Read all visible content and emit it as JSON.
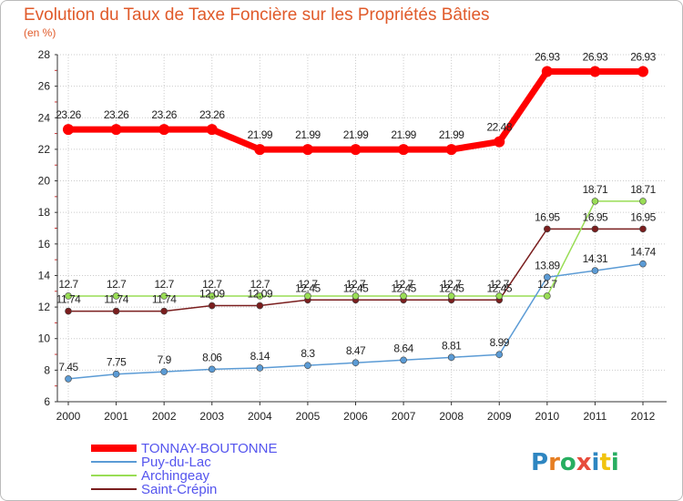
{
  "chart_data": {
    "type": "line",
    "title": "Evolution du Taux de Taxe Foncière sur les Propriétés Bâties",
    "ylabel": "(en %)",
    "xlabel": "",
    "ylim": [
      6,
      28
    ],
    "yticks": [
      "6",
      "8",
      "10",
      "12",
      "14",
      "16",
      "18",
      "20",
      "22",
      "24",
      "26",
      "28"
    ],
    "categories": [
      "2000",
      "2001",
      "2002",
      "2003",
      "2004",
      "2005",
      "2006",
      "2007",
      "2008",
      "2009",
      "2010",
      "2011",
      "2012"
    ],
    "series": [
      {
        "name": "TONNAY-BOUTONNE",
        "color": "#ff0000",
        "values": [
          23.26,
          23.26,
          23.26,
          23.26,
          21.99,
          21.99,
          21.99,
          21.99,
          21.99,
          22.48,
          26.93,
          26.93,
          26.93
        ],
        "labels": [
          "23.26",
          "23.26",
          "23.26",
          "23.26",
          "21.99",
          "21.99",
          "21.99",
          "21.99",
          "21.99",
          "22.48",
          "26.93",
          "26.93",
          "26.93"
        ]
      },
      {
        "name": "Puy-du-Lac",
        "color": "#5b9bd5",
        "values": [
          7.45,
          7.75,
          7.9,
          8.06,
          8.14,
          8.3,
          8.47,
          8.64,
          8.81,
          8.99,
          13.89,
          14.31,
          14.74
        ],
        "labels": [
          "7.45",
          "7.75",
          "7.9",
          "8.06",
          "8.14",
          "8.3",
          "8.47",
          "8.64",
          "8.81",
          "8.99",
          "13.89",
          "14.31",
          "14.74"
        ]
      },
      {
        "name": "Archingeay",
        "color": "#99dd55",
        "values": [
          12.7,
          12.7,
          12.7,
          12.7,
          12.7,
          12.7,
          12.7,
          12.7,
          12.7,
          12.7,
          12.7,
          18.71,
          18.71
        ],
        "labels": [
          "12.7",
          "12.7",
          "12.7",
          "12.7",
          "12.7",
          "12.7",
          "12.7",
          "12.7",
          "12.7",
          "12.7",
          "12.7",
          "18.71",
          "18.71"
        ]
      },
      {
        "name": "Saint-Crépin",
        "color": "#7a1e1e",
        "values": [
          11.74,
          11.74,
          11.74,
          12.09,
          12.09,
          12.45,
          12.45,
          12.45,
          12.45,
          12.45,
          16.95,
          16.95,
          16.95
        ],
        "labels": [
          "11.74",
          "11.74",
          "11.74",
          "12.09",
          "12.09",
          "12.45",
          "12.45",
          "12.45",
          "12.45",
          "12.45",
          "16.95",
          "16.95",
          "16.95"
        ]
      }
    ],
    "legend": [
      "TONNAY-BOUTONNE",
      "Puy-du-Lac",
      "Archingeay",
      "Saint-Crépin"
    ],
    "grid": true
  },
  "colors": {
    "title": "#e05a2a",
    "axis_text": "#222222",
    "grid": "#cccccc",
    "legend_text": "#5555ee"
  },
  "logo": {
    "text": "Proxiti"
  }
}
